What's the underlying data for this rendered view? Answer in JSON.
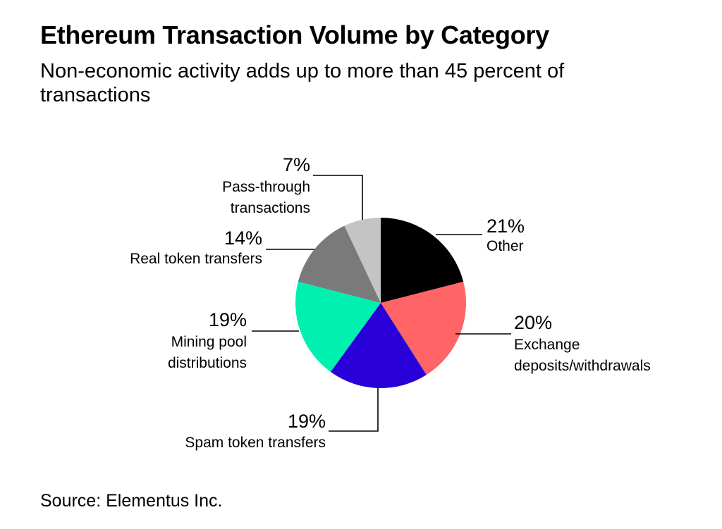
{
  "header": {
    "title": "Ethereum Transaction Volume by Category",
    "subtitle": "Non-economic activity adds up to more than 45 percent of transactions"
  },
  "footer": {
    "source": "Source: Elementus Inc."
  },
  "chart_data": {
    "type": "pie",
    "title": "Ethereum Transaction Volume by Category",
    "subtitle": "Non-economic activity adds up to more than 45 percent of transactions",
    "start_angle_deg": 0,
    "direction": "clockwise",
    "legend": "none (direct labels with leader lines)",
    "slices": [
      {
        "label_lines": [
          "Other"
        ],
        "value": 21,
        "value_label": "21%",
        "color": "#000000"
      },
      {
        "label_lines": [
          "Exchange",
          "deposits/withdrawals"
        ],
        "value": 20,
        "value_label": "20%",
        "color": "#ff6566"
      },
      {
        "label_lines": [
          "Spam token transfers"
        ],
        "value": 19,
        "value_label": "19%",
        "color": "#2a00d8"
      },
      {
        "label_lines": [
          "Mining pool",
          "distributions"
        ],
        "value": 19,
        "value_label": "19%",
        "color": "#00f0b0"
      },
      {
        "label_lines": [
          "Real token transfers"
        ],
        "value": 14,
        "value_label": "14%",
        "color": "#7a7a7a"
      },
      {
        "label_lines": [
          "Pass-through",
          "transactions"
        ],
        "value": 7,
        "value_label": "7%",
        "color": "#c4c4c4"
      }
    ]
  }
}
